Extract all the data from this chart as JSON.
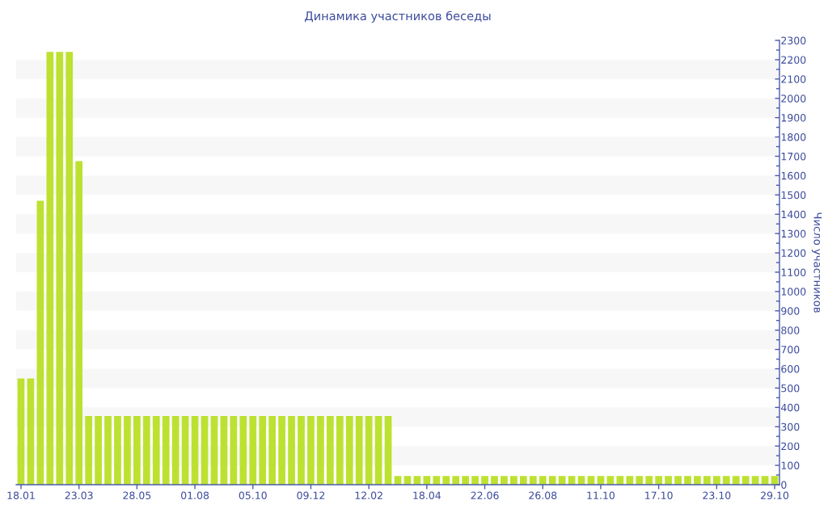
{
  "chart_data": {
    "type": "bar",
    "title": "Динамика участников беседы",
    "ylabel": "Число участников",
    "categories": [
      "18.01",
      null,
      null,
      null,
      null,
      null,
      "23.03",
      null,
      null,
      null,
      null,
      null,
      "28.05",
      null,
      null,
      null,
      null,
      null,
      "01.08",
      null,
      null,
      null,
      null,
      null,
      "05.10",
      null,
      null,
      null,
      null,
      null,
      "09.12",
      null,
      null,
      null,
      null,
      null,
      "12.02",
      null,
      null,
      null,
      null,
      null,
      "18.04",
      null,
      null,
      null,
      null,
      null,
      "22.06",
      null,
      null,
      null,
      null,
      null,
      "26.08",
      null,
      null,
      null,
      null,
      null,
      "11.10",
      null,
      null,
      null,
      null,
      null,
      "17.10",
      null,
      null,
      null,
      null,
      null,
      "23.10",
      null,
      null,
      null,
      null,
      null,
      "29.10"
    ],
    "values": [
      550,
      550,
      1470,
      2240,
      2240,
      2240,
      1675,
      355,
      355,
      355,
      355,
      355,
      355,
      355,
      355,
      355,
      355,
      355,
      355,
      355,
      355,
      355,
      355,
      355,
      355,
      355,
      355,
      355,
      355,
      355,
      355,
      355,
      355,
      355,
      355,
      355,
      355,
      355,
      355,
      45,
      45,
      45,
      45,
      45,
      45,
      45,
      45,
      45,
      45,
      45,
      45,
      45,
      45,
      45,
      45,
      45,
      45,
      45,
      45,
      45,
      45,
      45,
      45,
      45,
      45,
      45,
      45,
      45,
      45,
      45,
      45,
      45,
      45,
      45,
      45,
      45,
      45,
      45,
      45
    ],
    "color": "#bde131",
    "ylim": [
      0,
      2300
    ],
    "yticks": [
      0,
      100,
      200,
      300,
      400,
      500,
      600,
      700,
      800,
      900,
      1000,
      1100,
      1200,
      1300,
      1400,
      1500,
      1600,
      1700,
      1800,
      1900,
      2000,
      2100,
      2200,
      2300
    ],
    "bands": [
      {
        "axis": "y",
        "from": 100,
        "to": 200,
        "color": "#f7f7f7"
      },
      {
        "axis": "y",
        "from": 300,
        "to": 400,
        "color": "#f7f7f7"
      },
      {
        "axis": "y",
        "from": 500,
        "to": 600,
        "color": "#f7f7f7"
      },
      {
        "axis": "y",
        "from": 700,
        "to": 800,
        "color": "#f7f7f7"
      },
      {
        "axis": "y",
        "from": 900,
        "to": 1000,
        "color": "#f7f7f7"
      },
      {
        "axis": "y",
        "from": 1100,
        "to": 1200,
        "color": "#f7f7f7"
      },
      {
        "axis": "y",
        "from": 1300,
        "to": 1400,
        "color": "#f7f7f7"
      },
      {
        "axis": "y",
        "from": 1500,
        "to": 1600,
        "color": "#f7f7f7"
      },
      {
        "axis": "y",
        "from": 1700,
        "to": 1800,
        "color": "#f7f7f7"
      },
      {
        "axis": "y",
        "from": 1900,
        "to": 2000,
        "color": "#f7f7f7"
      },
      {
        "axis": "y",
        "from": 2100,
        "to": 2200,
        "color": "#f7f7f7"
      }
    ]
  }
}
